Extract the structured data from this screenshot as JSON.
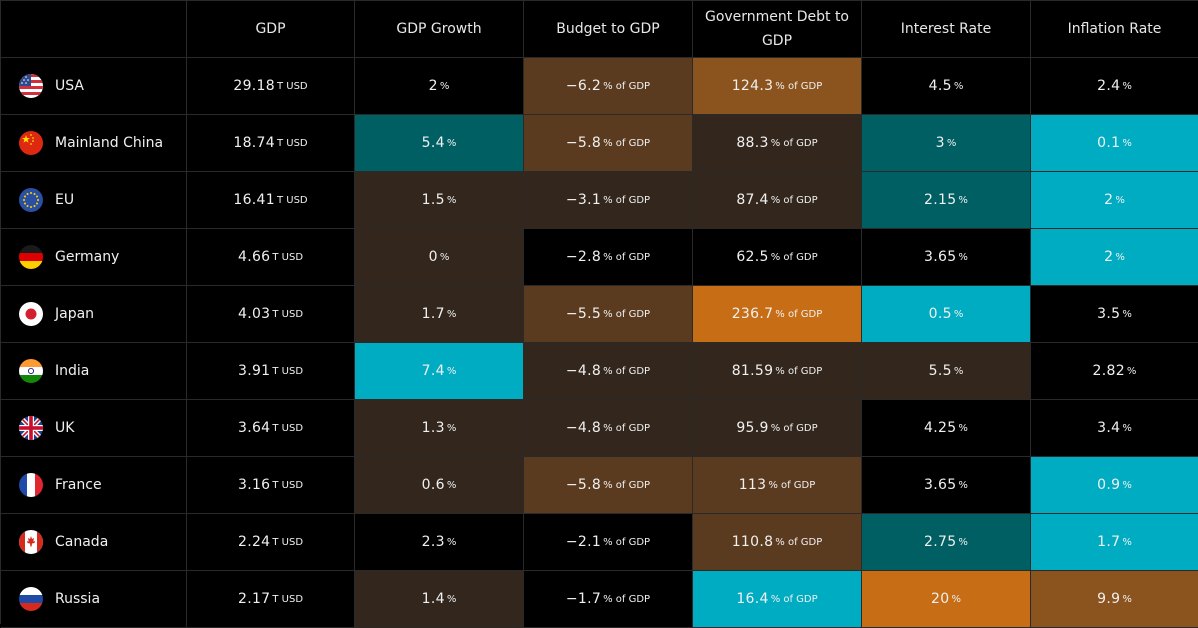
{
  "columns": [
    "GDP",
    "GDP Growth",
    "Budget to GDP",
    "Government Debt to GDP",
    "Interest Rate",
    "Inflation Rate"
  ],
  "colors": {
    "neutral": "#000000",
    "dark_brown": "#33271d",
    "brown": "#5b3b1f",
    "orange_brown": "#8b531d",
    "orange": "#c76d16",
    "dark_teal": "#005f63",
    "teal": "#00acc1"
  },
  "rows": [
    {
      "country": "USA",
      "flag": "usa-flag-icon",
      "gdp": "29.18",
      "gdp_unit": "T USD",
      "growth": "2",
      "growth_unit": "%",
      "budget": "−6.2",
      "budget_unit": "% of GDP",
      "debt": "124.3",
      "debt_unit": "% of GDP",
      "interest": "4.5",
      "interest_unit": "%",
      "inflation": "2.4",
      "inflation_unit": "%",
      "bg": {
        "growth": "#000000",
        "budget": "#5b3b1f",
        "debt": "#8b531d",
        "interest": "#000000",
        "inflation": "#000000"
      }
    },
    {
      "country": "Mainland China",
      "flag": "china-flag-icon",
      "gdp": "18.74",
      "gdp_unit": "T USD",
      "growth": "5.4",
      "growth_unit": "%",
      "budget": "−5.8",
      "budget_unit": "% of GDP",
      "debt": "88.3",
      "debt_unit": "% of GDP",
      "interest": "3",
      "interest_unit": "%",
      "inflation": "0.1",
      "inflation_unit": "%",
      "bg": {
        "growth": "#005f63",
        "budget": "#5b3b1f",
        "debt": "#33271d",
        "interest": "#005f63",
        "inflation": "#00acc1"
      }
    },
    {
      "country": "EU",
      "flag": "eu-flag-icon",
      "gdp": "16.41",
      "gdp_unit": "T USD",
      "growth": "1.5",
      "growth_unit": "%",
      "budget": "−3.1",
      "budget_unit": "% of GDP",
      "debt": "87.4",
      "debt_unit": "% of GDP",
      "interest": "2.15",
      "interest_unit": "%",
      "inflation": "2",
      "inflation_unit": "%",
      "bg": {
        "growth": "#33271d",
        "budget": "#33271d",
        "debt": "#33271d",
        "interest": "#005f63",
        "inflation": "#00acc1"
      }
    },
    {
      "country": "Germany",
      "flag": "germany-flag-icon",
      "gdp": "4.66",
      "gdp_unit": "T USD",
      "growth": "0",
      "growth_unit": "%",
      "budget": "−2.8",
      "budget_unit": "% of GDP",
      "debt": "62.5",
      "debt_unit": "% of GDP",
      "interest": "3.65",
      "interest_unit": "%",
      "inflation": "2",
      "inflation_unit": "%",
      "bg": {
        "growth": "#33271d",
        "budget": "#000000",
        "debt": "#000000",
        "interest": "#000000",
        "inflation": "#00acc1"
      }
    },
    {
      "country": "Japan",
      "flag": "japan-flag-icon",
      "gdp": "4.03",
      "gdp_unit": "T USD",
      "growth": "1.7",
      "growth_unit": "%",
      "budget": "−5.5",
      "budget_unit": "% of GDP",
      "debt": "236.7",
      "debt_unit": "% of GDP",
      "interest": "0.5",
      "interest_unit": "%",
      "inflation": "3.5",
      "inflation_unit": "%",
      "bg": {
        "growth": "#33271d",
        "budget": "#5b3b1f",
        "debt": "#c76d16",
        "interest": "#00acc1",
        "inflation": "#000000"
      }
    },
    {
      "country": "India",
      "flag": "india-flag-icon",
      "gdp": "3.91",
      "gdp_unit": "T USD",
      "growth": "7.4",
      "growth_unit": "%",
      "budget": "−4.8",
      "budget_unit": "% of GDP",
      "debt": "81.59",
      "debt_unit": "% of GDP",
      "interest": "5.5",
      "interest_unit": "%",
      "inflation": "2.82",
      "inflation_unit": "%",
      "bg": {
        "growth": "#00acc1",
        "budget": "#33271d",
        "debt": "#33271d",
        "interest": "#33271d",
        "inflation": "#000000"
      }
    },
    {
      "country": "UK",
      "flag": "uk-flag-icon",
      "gdp": "3.64",
      "gdp_unit": "T USD",
      "growth": "1.3",
      "growth_unit": "%",
      "budget": "−4.8",
      "budget_unit": "% of GDP",
      "debt": "95.9",
      "debt_unit": "% of GDP",
      "interest": "4.25",
      "interest_unit": "%",
      "inflation": "3.4",
      "inflation_unit": "%",
      "bg": {
        "growth": "#33271d",
        "budget": "#33271d",
        "debt": "#33271d",
        "interest": "#000000",
        "inflation": "#000000"
      }
    },
    {
      "country": "France",
      "flag": "france-flag-icon",
      "gdp": "3.16",
      "gdp_unit": "T USD",
      "growth": "0.6",
      "growth_unit": "%",
      "budget": "−5.8",
      "budget_unit": "% of GDP",
      "debt": "113",
      "debt_unit": "% of GDP",
      "interest": "3.65",
      "interest_unit": "%",
      "inflation": "0.9",
      "inflation_unit": "%",
      "bg": {
        "growth": "#33271d",
        "budget": "#5b3b1f",
        "debt": "#5b3b1f",
        "interest": "#000000",
        "inflation": "#00acc1"
      }
    },
    {
      "country": "Canada",
      "flag": "canada-flag-icon",
      "gdp": "2.24",
      "gdp_unit": "T USD",
      "growth": "2.3",
      "growth_unit": "%",
      "budget": "−2.1",
      "budget_unit": "% of GDP",
      "debt": "110.8",
      "debt_unit": "% of GDP",
      "interest": "2.75",
      "interest_unit": "%",
      "inflation": "1.7",
      "inflation_unit": "%",
      "bg": {
        "growth": "#000000",
        "budget": "#000000",
        "debt": "#5b3b1f",
        "interest": "#005f63",
        "inflation": "#00acc1"
      }
    },
    {
      "country": "Russia",
      "flag": "russia-flag-icon",
      "gdp": "2.17",
      "gdp_unit": "T USD",
      "growth": "1.4",
      "growth_unit": "%",
      "budget": "−1.7",
      "budget_unit": "% of GDP",
      "debt": "16.4",
      "debt_unit": "% of GDP",
      "interest": "20",
      "interest_unit": "%",
      "inflation": "9.9",
      "inflation_unit": "%",
      "bg": {
        "growth": "#33271d",
        "budget": "#000000",
        "debt": "#00acc1",
        "interest": "#c76d16",
        "inflation": "#8b531d"
      }
    }
  ]
}
